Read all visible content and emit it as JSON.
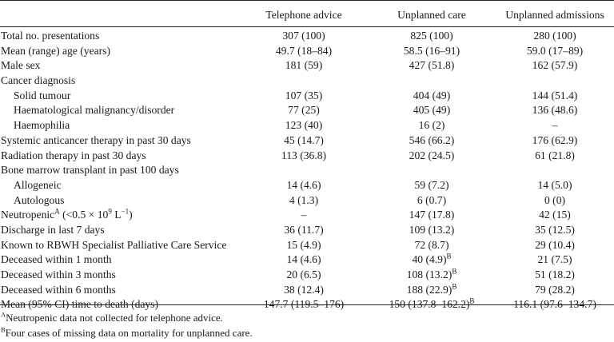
{
  "header": {
    "col1": "Telephone advice",
    "col2": "Unplanned care",
    "col3": "Unplanned admissions"
  },
  "rows": [
    {
      "label": "Total no. presentations",
      "indent": false,
      "c1": "307 (100)",
      "c2": "825 (100)",
      "c3": "280 (100)"
    },
    {
      "label": "Mean (range) age (years)",
      "indent": false,
      "c1": "49.7 (18–84)",
      "c2": "58.5 (16–91)",
      "c3": "59.0 (17–89)"
    },
    {
      "label": "Male sex",
      "indent": false,
      "c1": "181 (59)",
      "c2": "427 (51.8)",
      "c3": "162 (57.9)"
    },
    {
      "label": "Cancer diagnosis",
      "indent": false,
      "c1": "",
      "c2": "",
      "c3": ""
    },
    {
      "label": "Solid tumour",
      "indent": true,
      "c1": "107 (35)",
      "c2": "404 (49)",
      "c3": "144 (51.4)"
    },
    {
      "label": "Haematological malignancy/disorder",
      "indent": true,
      "c1": "77 (25)",
      "c2": "405 (49)",
      "c3": "136 (48.6)"
    },
    {
      "label": "Haemophilia",
      "indent": true,
      "c1": "123 (40)",
      "c2": "16 (2)",
      "c3": "–"
    },
    {
      "label": "Systemic anticancer therapy in past 30 days",
      "indent": false,
      "c1": "45 (14.7)",
      "c2": "546 (66.2)",
      "c3": "176 (62.9)"
    },
    {
      "label": "Radiation therapy in past 30 days",
      "indent": false,
      "c1": "113 (36.8)",
      "c2": "202 (24.5)",
      "c3": "61 (21.8)"
    },
    {
      "label": "Bone marrow transplant in past 100 days",
      "indent": false,
      "c1": "",
      "c2": "",
      "c3": ""
    },
    {
      "label": "Allogeneic",
      "indent": true,
      "c1": "14 (4.6)",
      "c2": "59 (7.2)",
      "c3": "14 (5.0)"
    },
    {
      "label": "Autologous",
      "indent": true,
      "c1": "4 (1.3)",
      "c2": "6 (0.7)",
      "c3": "0 (0)"
    },
    {
      "label": "Neutropenic",
      "label_sup": "A",
      "label_tail": "(<0.5 × 10",
      "label_tail_sup": "9",
      "label_tail2": " L",
      "label_tail2_sup": "−1",
      "label_tail3": ")",
      "indent": false,
      "c1": "–",
      "c2": "147 (17.8)",
      "c3": "42 (15)"
    },
    {
      "label": "Discharge in last 7 days",
      "indent": false,
      "c1": "36 (11.7)",
      "c2": "109 (13.2)",
      "c3": "35 (12.5)"
    },
    {
      "label": "Known to RBWH Specialist Palliative Care Service",
      "indent": false,
      "c1": "15 (4.9)",
      "c2": "72 (8.7)",
      "c3": "29 (10.4)"
    },
    {
      "label": "Deceased within 1 month",
      "indent": false,
      "c1": "14 (4.6)",
      "c2": "40 (4.9)",
      "c2_sup": "B",
      "c3": "21 (7.5)"
    },
    {
      "label": "Deceased within 3 months",
      "indent": false,
      "c1": "20 (6.5)",
      "c2": "108 (13.2)",
      "c2_sup": "B",
      "c3": "51 (18.2)"
    },
    {
      "label": "Deceased within 6 months",
      "indent": false,
      "c1": "38 (12.4)",
      "c2": "188 (22.9)",
      "c2_sup": "B",
      "c3": "79 (28.2)"
    },
    {
      "label": "Mean (95% CI) time to death (days)",
      "indent": false,
      "c1": "147.7 (119.5–176)",
      "c2": "150 (137.8–162.2)",
      "c2_sup": "B",
      "c3": "116.1 (97.6–134.7)"
    }
  ],
  "footnotes": {
    "a_mark": "A",
    "a_text": "Neutropenic data not collected for telephone advice.",
    "b_mark": "B",
    "b_text": "Four cases of missing data on mortality for unplanned care."
  }
}
